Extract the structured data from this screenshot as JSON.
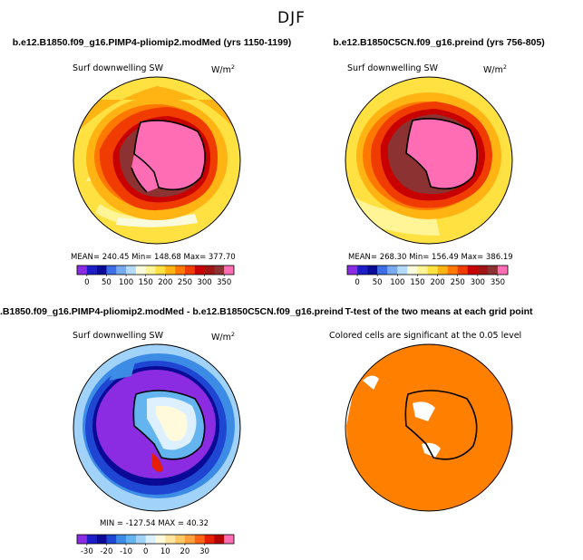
{
  "figure": {
    "title": "DJF"
  },
  "panels": {
    "top_left": {
      "title": "b.e12.B1850.f09_g16.PIMP4-pliomip2.modMed (yrs 1150-1199)",
      "variable": "Surf downwelling SW",
      "units_base": "W/m",
      "units_exp": "2",
      "stats": "MEAN= 240.45   Min= 148.68   Max= 377.70"
    },
    "top_right": {
      "title": "b.e12.B1850C5CN.f09_g16.preind (yrs 756-805)",
      "variable": "Surf downwelling SW",
      "units_base": "W/m",
      "units_exp": "2",
      "stats": "MEAN= 268.30   Min= 156.49   Max= 386.19"
    },
    "bottom_left": {
      "title": ".B1850.f09_g16.PIMP4-pliomip2.modMed - b.e12.B1850C5CN.f09_g16.preind",
      "variable": "Surf downwelling SW",
      "units_base": "W/m",
      "units_exp": "2",
      "stats": "MIN = -127.54 MAX =  40.32"
    },
    "bottom_right": {
      "title": "T-test of the two means at each grid point",
      "subtitle": "Colored cells are significant at the 0.05 level"
    }
  },
  "chart_data": [
    {
      "type": "heatmap",
      "name": "pliomip2 surface downwelling SW (DJF)",
      "projection": "south polar stereographic",
      "statistics": {
        "mean": 240.45,
        "min": 148.68,
        "max": 377.7
      },
      "colorbar": {
        "levels": [
          0,
          25,
          50,
          75,
          100,
          125,
          150,
          175,
          200,
          225,
          250,
          275,
          300,
          325,
          350
        ],
        "tick_labels": [
          "0",
          "50",
          "100",
          "150",
          "200",
          "250",
          "300",
          "350"
        ],
        "colors": [
          "#8b2be2",
          "#1e1ec8",
          "#0a0a96",
          "#3c6ee6",
          "#78aaf0",
          "#b4dcfa",
          "#fafadc",
          "#fff596",
          "#ffe141",
          "#ffb414",
          "#ff7800",
          "#f03c00",
          "#c80000",
          "#a01414",
          "#8c3232",
          "#ff6eb4"
        ]
      }
    },
    {
      "type": "heatmap",
      "name": "preindustrial surface downwelling SW (DJF)",
      "projection": "south polar stereographic",
      "statistics": {
        "mean": 268.3,
        "min": 156.49,
        "max": 386.19
      },
      "colorbar": {
        "levels": [
          0,
          25,
          50,
          75,
          100,
          125,
          150,
          175,
          200,
          225,
          250,
          275,
          300,
          325,
          350
        ],
        "tick_labels": [
          "0",
          "50",
          "100",
          "150",
          "200",
          "250",
          "300",
          "350"
        ],
        "colors": [
          "#8b2be2",
          "#1e1ec8",
          "#0a0a96",
          "#3c6ee6",
          "#78aaf0",
          "#b4dcfa",
          "#fafadc",
          "#fff596",
          "#ffe141",
          "#ffb414",
          "#ff7800",
          "#f03c00",
          "#c80000",
          "#a01414",
          "#8c3232",
          "#ff6eb4"
        ]
      }
    },
    {
      "type": "heatmap",
      "name": "difference pliomip2 minus preindustrial",
      "projection": "south polar stereographic",
      "statistics": {
        "min": -127.54,
        "max": 40.32
      },
      "colorbar": {
        "levels": [
          -35,
          -30,
          -25,
          -20,
          -15,
          -10,
          -5,
          0,
          5,
          10,
          15,
          20,
          25,
          30,
          35
        ],
        "tick_labels": [
          "-30",
          "-20",
          "-10",
          "0",
          "10",
          "20",
          "30"
        ],
        "colors": [
          "#8b2be2",
          "#1e1ec8",
          "#0a0a96",
          "#1e46d2",
          "#3c8ce6",
          "#64b4f0",
          "#a0d2fa",
          "#dcf0ff",
          "#fffadc",
          "#ffe6a0",
          "#ffc864",
          "#ffa03c",
          "#ff6414",
          "#e61e00",
          "#b40000",
          "#ff6eb4"
        ]
      }
    },
    {
      "type": "heatmap",
      "name": "t-test significance mask",
      "significance_level": 0.05,
      "significant_color": "#ff7f00"
    }
  ]
}
